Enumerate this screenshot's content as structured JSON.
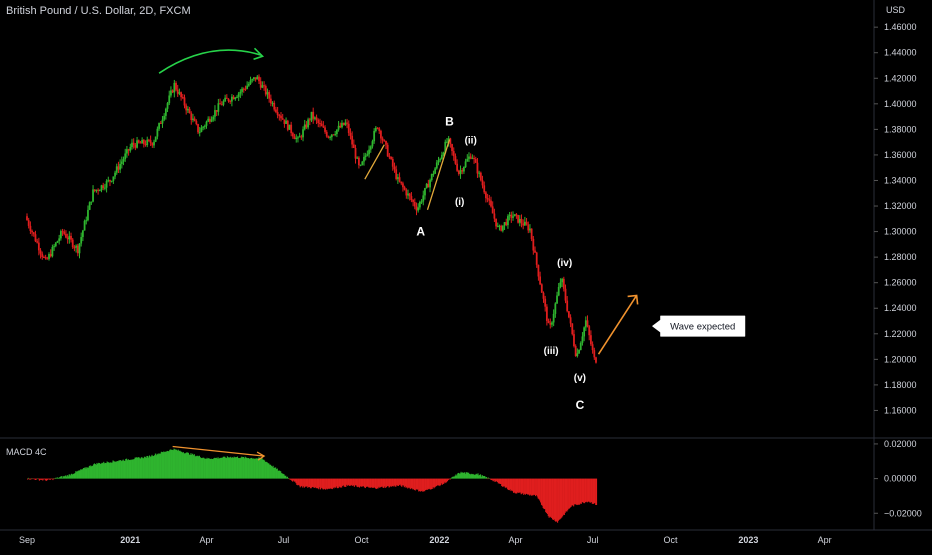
{
  "title": "British Pound / U.S. Dollar, 2D, FXCM",
  "currency": "USD",
  "macd_label": "MACD 4C",
  "colors": {
    "background": "#000000",
    "up": "#2fb52f",
    "down": "#e01e1e",
    "text": "#d1d4dc",
    "annotation_arrow": "#f0922e",
    "arc_arrow": "#27d34a",
    "trend_line": "#e3a93a"
  },
  "chart_data": [
    {
      "type": "candlestick",
      "title": "British Pound / U.S. Dollar, 2D, FXCM",
      "ylabel": "USD",
      "ylim": [
        1.14,
        1.475
      ],
      "y_ticks": [
        "1.46000",
        "1.44000",
        "1.42000",
        "1.40000",
        "1.38000",
        "1.36000",
        "1.34000",
        "1.32000",
        "1.30000",
        "1.28000",
        "1.26000",
        "1.24000",
        "1.22000",
        "1.20000",
        "1.18000",
        "1.16000"
      ],
      "x_ticks": [
        "Sep",
        "2021",
        "Apr",
        "Jul",
        "Oct",
        "2022",
        "Apr",
        "Jul",
        "Oct",
        "2023",
        "Apr"
      ],
      "price_path": [
        [
          "2020-09-01",
          1.312
        ],
        [
          "2020-09-25",
          1.276
        ],
        [
          "2020-10-15",
          1.3
        ],
        [
          "2020-11-02",
          1.286
        ],
        [
          "2020-11-20",
          1.331
        ],
        [
          "2020-12-10",
          1.34
        ],
        [
          "2021-01-05",
          1.368
        ],
        [
          "2021-01-30",
          1.37
        ],
        [
          "2021-02-24",
          1.415
        ],
        [
          "2021-03-25",
          1.378
        ],
        [
          "2021-04-20",
          1.4
        ],
        [
          "2021-05-12",
          1.409
        ],
        [
          "2021-06-01",
          1.421
        ],
        [
          "2021-06-22",
          1.398
        ],
        [
          "2021-07-20",
          1.371
        ],
        [
          "2021-08-05",
          1.391
        ],
        [
          "2021-08-25",
          1.375
        ],
        [
          "2021-09-15",
          1.385
        ],
        [
          "2021-10-01",
          1.348
        ],
        [
          "2021-10-22",
          1.383
        ],
        [
          "2021-11-15",
          1.34
        ],
        [
          "2021-12-08",
          1.318
        ],
        [
          "2022-01-13",
          1.372
        ],
        [
          "2022-01-26",
          1.346
        ],
        [
          "2022-02-10",
          1.361
        ],
        [
          "2022-03-14",
          1.301
        ],
        [
          "2022-03-30",
          1.313
        ],
        [
          "2022-04-20",
          1.302
        ],
        [
          "2022-05-13",
          1.222
        ],
        [
          "2022-05-27",
          1.264
        ],
        [
          "2022-06-14",
          1.202
        ],
        [
          "2022-06-25",
          1.23
        ],
        [
          "2022-07-05",
          1.2
        ]
      ],
      "annotations": {
        "wave_labels": [
          {
            "text": "A",
            "date": "2021-12-10",
            "price": 1.297
          },
          {
            "text": "B",
            "date": "2022-01-13",
            "price": 1.383
          },
          {
            "text": "(ii)",
            "date": "2022-02-07",
            "price": 1.369
          },
          {
            "text": "(i)",
            "date": "2022-01-25",
            "price": 1.321
          },
          {
            "text": "(iv)",
            "date": "2022-05-29",
            "price": 1.273
          },
          {
            "text": "(iii)",
            "date": "2022-05-13",
            "price": 1.204
          },
          {
            "text": "(v)",
            "date": "2022-06-16",
            "price": 1.183
          },
          {
            "text": "C",
            "date": "2022-06-16",
            "price": 1.161
          }
        ],
        "callout": {
          "text": "Wave expected",
          "date": "2022-09-10",
          "price": 1.226
        }
      }
    },
    {
      "type": "histogram",
      "title": "MACD 4C",
      "ylim": [
        -0.0285,
        0.024
      ],
      "y_ticks": [
        "0.02000",
        "0.00000",
        "−0.02000"
      ],
      "positive_color": "#2fb52f",
      "negative_color": "#e01e1e",
      "path": [
        [
          "2020-09-01",
          0.0
        ],
        [
          "2020-09-25",
          -0.001
        ],
        [
          "2020-10-20",
          0.002
        ],
        [
          "2020-11-20",
          0.0085
        ],
        [
          "2020-12-20",
          0.0105
        ],
        [
          "2021-01-20",
          0.0125
        ],
        [
          "2021-02-20",
          0.017
        ],
        [
          "2021-03-10",
          0.0145
        ],
        [
          "2021-04-01",
          0.0115
        ],
        [
          "2021-05-01",
          0.0125
        ],
        [
          "2021-06-05",
          0.0115
        ],
        [
          "2021-06-25",
          0.0045
        ],
        [
          "2021-07-20",
          -0.0045
        ],
        [
          "2021-08-20",
          -0.006
        ],
        [
          "2021-09-15",
          -0.004
        ],
        [
          "2021-10-15",
          -0.0055
        ],
        [
          "2021-11-15",
          -0.004
        ],
        [
          "2021-12-12",
          -0.0075
        ],
        [
          "2022-01-05",
          -0.003
        ],
        [
          "2022-01-25",
          0.0035
        ],
        [
          "2022-02-15",
          0.0025
        ],
        [
          "2022-03-05",
          -0.001
        ],
        [
          "2022-03-30",
          -0.008
        ],
        [
          "2022-04-25",
          -0.01
        ],
        [
          "2022-05-10",
          -0.022
        ],
        [
          "2022-05-20",
          -0.025
        ],
        [
          "2022-06-05",
          -0.016
        ],
        [
          "2022-06-25",
          -0.013
        ],
        [
          "2022-07-05",
          -0.015
        ]
      ]
    }
  ]
}
